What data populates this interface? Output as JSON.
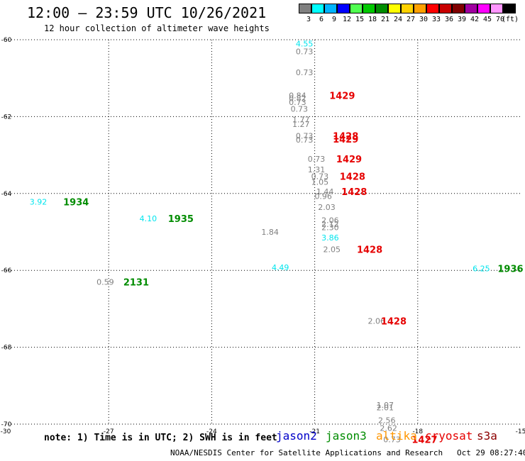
{
  "header": {
    "title": "12:00 – 23:59 UTC 10/26/2021",
    "subtitle": "12 hour collection of altimeter wave heights"
  },
  "color_scale": {
    "unit": "(ft)",
    "bins": [
      {
        "label": "3",
        "color": "#808080"
      },
      {
        "label": "6",
        "color": "#00ffff"
      },
      {
        "label": "9",
        "color": "#00b4ff"
      },
      {
        "label": "12",
        "color": "#0000ff"
      },
      {
        "label": "15",
        "color": "#50ff50"
      },
      {
        "label": "18",
        "color": "#00c800"
      },
      {
        "label": "21",
        "color": "#008c00"
      },
      {
        "label": "24",
        "color": "#ffff00"
      },
      {
        "label": "27",
        "color": "#ffd200"
      },
      {
        "label": "30",
        "color": "#ffa000"
      },
      {
        "label": "33",
        "color": "#ff0000"
      },
      {
        "label": "36",
        "color": "#c80000"
      },
      {
        "label": "39",
        "color": "#800000"
      },
      {
        "label": "42",
        "color": "#a000a0"
      },
      {
        "label": "45",
        "color": "#ff00ff"
      },
      {
        "label": "70",
        "color": "#ff96ff"
      },
      {
        "label": "",
        "color": "#000000"
      }
    ]
  },
  "footer": {
    "note": "note: 1) Time is in UTC; 2) SWH is in feet",
    "missions": [
      {
        "name": "jason2",
        "color": "#0000c8"
      },
      {
        "name": "jason3",
        "color": "#008c00"
      },
      {
        "name": "altika",
        "color": "#ff9600"
      },
      {
        "name": "cryosat",
        "color": "#e60000"
      },
      {
        "name": "s3a",
        "color": "#8c0000"
      }
    ],
    "credit": "NOAA/NESDIS Center for Satellite Applications and Research   Oct 29 08:27:40 UTC 2021"
  },
  "chart_data": {
    "type": "scatter",
    "xlim": [
      -30,
      -15
    ],
    "ylim": [
      -70,
      -60
    ],
    "x_ticks": [
      -30,
      -27,
      -24,
      -21,
      -18,
      -15
    ],
    "y_ticks": [
      -60,
      -62,
      -64,
      -66,
      -68,
      -70
    ],
    "x_tick_labels": [
      "-30",
      "-27",
      "-24",
      "-21",
      "-18",
      "-15"
    ],
    "y_tick_labels": [
      "-60",
      "-62",
      "-64",
      "-66",
      "-68",
      "-70"
    ],
    "grid": true,
    "wave_heights": [
      {
        "lon": -21.3,
        "lat": -60.1,
        "value": "4.55",
        "color": "#00e5ee"
      },
      {
        "lon": -21.3,
        "lat": -60.3,
        "value": "0.73",
        "color": "#808080"
      },
      {
        "lon": -21.3,
        "lat": -60.85,
        "value": "0.73",
        "color": "#808080"
      },
      {
        "lon": -21.5,
        "lat": -61.45,
        "value": "0.84",
        "color": "#808080"
      },
      {
        "lon": -21.5,
        "lat": -61.52,
        "value": "0.82",
        "color": "#808080"
      },
      {
        "lon": -21.5,
        "lat": -61.62,
        "value": "0.73",
        "color": "#808080"
      },
      {
        "lon": -21.45,
        "lat": -61.8,
        "value": "0.73",
        "color": "#808080"
      },
      {
        "lon": -21.4,
        "lat": -62.08,
        "value": "1.77",
        "color": "#808080"
      },
      {
        "lon": -21.4,
        "lat": -62.2,
        "value": "1.27",
        "color": "#808080"
      },
      {
        "lon": -21.3,
        "lat": -62.5,
        "value": "0.73",
        "color": "#808080"
      },
      {
        "lon": -21.3,
        "lat": -62.6,
        "value": "0.73",
        "color": "#808080"
      },
      {
        "lon": -20.95,
        "lat": -63.1,
        "value": "0.73",
        "color": "#808080"
      },
      {
        "lon": -20.95,
        "lat": -63.38,
        "value": "1.31",
        "color": "#808080"
      },
      {
        "lon": -20.85,
        "lat": -63.55,
        "value": "0.73",
        "color": "#808080"
      },
      {
        "lon": -20.85,
        "lat": -63.7,
        "value": "1.05",
        "color": "#808080"
      },
      {
        "lon": -20.7,
        "lat": -63.95,
        "value": "1.44",
        "color": "#808080"
      },
      {
        "lon": -20.75,
        "lat": -64.07,
        "value": "0.96",
        "color": "#808080"
      },
      {
        "lon": -20.65,
        "lat": -64.35,
        "value": "2.03",
        "color": "#808080"
      },
      {
        "lon": -20.55,
        "lat": -64.7,
        "value": "2.06",
        "color": "#808080"
      },
      {
        "lon": -20.55,
        "lat": -64.8,
        "value": "2.12",
        "color": "#808080"
      },
      {
        "lon": -20.55,
        "lat": -64.88,
        "value": "2.30",
        "color": "#808080"
      },
      {
        "lon": -20.55,
        "lat": -65.15,
        "value": "3.86",
        "color": "#00e5ee"
      },
      {
        "lon": -20.5,
        "lat": -65.45,
        "value": "2.05",
        "color": "#808080"
      },
      {
        "lon": -22.3,
        "lat": -65.0,
        "value": "1.84",
        "color": "#808080"
      },
      {
        "lon": -22.0,
        "lat": -65.92,
        "value": "4.49",
        "color": "#00e5ee"
      },
      {
        "lon": -29.05,
        "lat": -64.22,
        "value": "3.92",
        "color": "#00e5ee"
      },
      {
        "lon": -25.85,
        "lat": -64.65,
        "value": "4.10",
        "color": "#00e5ee"
      },
      {
        "lon": -27.1,
        "lat": -66.3,
        "value": "0.59",
        "color": "#808080"
      },
      {
        "lon": -16.15,
        "lat": -65.95,
        "value": "6.25",
        "color": "#00e5ee"
      },
      {
        "lon": -19.2,
        "lat": -67.32,
        "value": "2.06",
        "color": "#808080"
      },
      {
        "lon": -18.95,
        "lat": -69.5,
        "value": "1.07",
        "color": "#808080"
      },
      {
        "lon": -18.95,
        "lat": -69.57,
        "value": "2.01",
        "color": "#808080"
      },
      {
        "lon": -18.9,
        "lat": -69.9,
        "value": "2.56",
        "color": "#808080"
      },
      {
        "lon": -18.85,
        "lat": -70.1,
        "value": "2.62",
        "color": "#808080"
      },
      {
        "lon": -18.75,
        "lat": -70.4,
        "value": "0.73",
        "color": "#808080"
      }
    ],
    "pass_times": [
      {
        "lon": -20.2,
        "lat": -61.45,
        "time": "1429",
        "mission": "cryosat"
      },
      {
        "lon": -20.1,
        "lat": -62.5,
        "time": "1428",
        "mission": "cryosat"
      },
      {
        "lon": -20.1,
        "lat": -62.58,
        "time": "1429",
        "mission": "cryosat"
      },
      {
        "lon": -20.0,
        "lat": -63.1,
        "time": "1429",
        "mission": "cryosat"
      },
      {
        "lon": -19.9,
        "lat": -63.55,
        "time": "1428",
        "mission": "cryosat"
      },
      {
        "lon": -19.85,
        "lat": -63.95,
        "time": "1428",
        "mission": "cryosat"
      },
      {
        "lon": -19.4,
        "lat": -65.45,
        "time": "1428",
        "mission": "cryosat"
      },
      {
        "lon": -18.7,
        "lat": -67.32,
        "time": "1428",
        "mission": "cryosat"
      },
      {
        "lon": -17.8,
        "lat": -70.4,
        "time": "1427",
        "mission": "cryosat"
      },
      {
        "lon": -27.95,
        "lat": -64.22,
        "time": "1934",
        "mission": "jason3"
      },
      {
        "lon": -24.9,
        "lat": -64.65,
        "time": "1935",
        "mission": "jason3"
      },
      {
        "lon": -26.2,
        "lat": -66.3,
        "time": "2131",
        "mission": "jason3"
      },
      {
        "lon": -15.3,
        "lat": -65.95,
        "time": "1936",
        "mission": "jason3"
      }
    ]
  }
}
